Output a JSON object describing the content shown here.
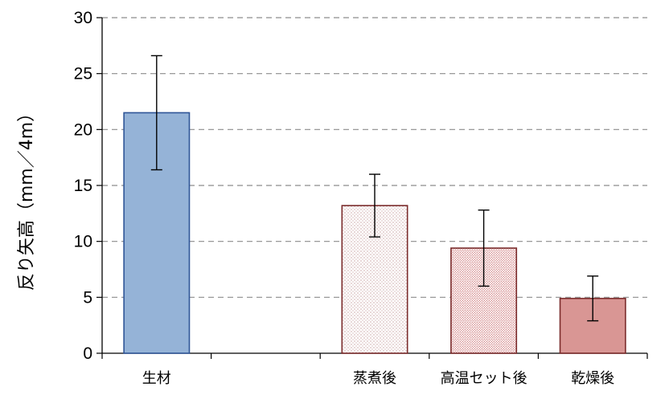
{
  "chart_data": {
    "type": "bar",
    "title": "",
    "xlabel": "",
    "ylabel": "反り矢高（mm／4m）",
    "ylim": [
      0,
      30
    ],
    "yticks": [
      0,
      5,
      10,
      15,
      20,
      25,
      30
    ],
    "grid": true,
    "categories": [
      "生材",
      "",
      "蒸煮後",
      "高温セット後",
      "乾燥後"
    ],
    "values": [
      21.5,
      null,
      13.2,
      9.4,
      4.9
    ],
    "errors": [
      5.1,
      null,
      2.8,
      3.4,
      2.0
    ],
    "bar_styles": [
      {
        "fill": "#95b3d7",
        "stroke": "#2f5597",
        "pattern": "solid"
      },
      null,
      {
        "fill": "#ffffff",
        "stroke": "#7b2c2c",
        "pattern": "sparse-dots"
      },
      {
        "fill": "#ffffff",
        "stroke": "#7b2c2c",
        "pattern": "dense-dots"
      },
      {
        "fill": "#d99694",
        "stroke": "#7b2c2c",
        "pattern": "solid"
      }
    ]
  }
}
